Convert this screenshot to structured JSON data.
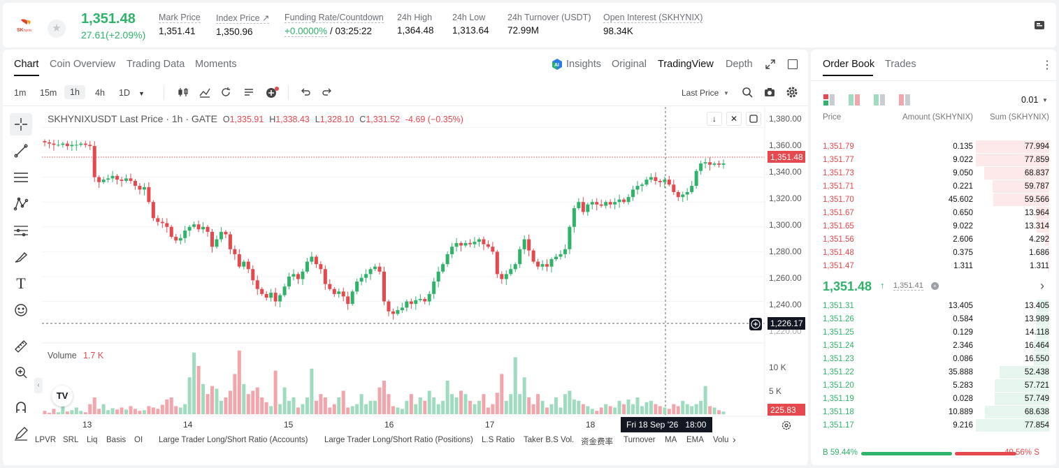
{
  "ticker": {
    "logo_text": "SK hynix",
    "last_price": "1,351.48",
    "change": "27.61(+2.09%)",
    "stats": [
      {
        "label": "Mark Price",
        "value": "1,351.41"
      },
      {
        "label": "Index Price ↗",
        "value": "1,350.96"
      },
      {
        "label": "Funding Rate/Countdown",
        "value_green": "+0.0000%",
        "value": " / 03:25:22"
      },
      {
        "label": "24h High",
        "value": "1,364.48"
      },
      {
        "label": "24h Low",
        "value": "1,313.64"
      },
      {
        "label": "24h Turnover (USDT)",
        "value": "72.99M"
      },
      {
        "label": "Open Interest (SKHYNIX)",
        "value": "98.34K"
      }
    ]
  },
  "chart_tabs": [
    "Chart",
    "Coin Overview",
    "Trading Data",
    "Moments"
  ],
  "view_tabs": {
    "insights": "Insights",
    "original": "Original",
    "tradingview": "TradingView",
    "depth": "Depth"
  },
  "timeframes": [
    "1m",
    "15m",
    "1h",
    "4h",
    "1D"
  ],
  "selected_timeframe": "1h",
  "price_type": "Last Price",
  "legend": {
    "title": "SKHYNIXUSDT Last Price · 1h · GATE",
    "o": "1,335.91",
    "h": "1,338.43",
    "l": "1,328.10",
    "c": "1,331.52",
    "chg": "-4.69 (−0.35%)"
  },
  "volume_label": "Volume",
  "volume_value": "1.7 K",
  "last_price_tag": "1,351.48",
  "crosshair_price_tag": "1,226.17",
  "volume_tag": "225.83",
  "crosshair_time": "Fri 18 Sep '26",
  "crosshair_hour": "18:00",
  "tv_logo": "TV",
  "bottom_tabs": [
    "LPVR",
    "SRL",
    "Liq",
    "Basis",
    "OI",
    "Large Trader Long/Short Ratio (Accounts)",
    "Large Trader Long/Short Ratio (Positions)",
    "L.S Ratio",
    "Taker B.S Vol.",
    "资金费率",
    "Turnover",
    "MA",
    "EMA",
    "Volu"
  ],
  "chart_data": {
    "type": "candlestick",
    "title": "SKHYNIXUSDT Last Price · 1h · GATE",
    "y_ticks": [
      "1,380.00",
      "1,360.00",
      "1,340.00",
      "1,320.00",
      "1,300.00",
      "1,280.00",
      "1,260.00",
      "1,240.00",
      "1,220.00"
    ],
    "y_range": [
      1215,
      1387
    ],
    "x_ticks": [
      "13",
      "14",
      "15",
      "16",
      "17",
      "18"
    ],
    "volume_ticks": [
      "10 K",
      "5 K"
    ],
    "volume_range": [
      0,
      15000
    ],
    "close_path": [
      1368,
      1367,
      1366,
      1366,
      1367,
      1365,
      1366,
      1366,
      1367,
      1366,
      1365,
      1340,
      1336,
      1338,
      1339,
      1341,
      1338,
      1337,
      1339,
      1337,
      1333,
      1330,
      1332,
      1320,
      1307,
      1304,
      1303,
      1300,
      1292,
      1289,
      1291,
      1297,
      1300,
      1302,
      1298,
      1300,
      1296,
      1284,
      1290,
      1296,
      1294,
      1282,
      1278,
      1268,
      1272,
      1266,
      1257,
      1250,
      1246,
      1243,
      1247,
      1240,
      1245,
      1252,
      1260,
      1262,
      1258,
      1264,
      1272,
      1276,
      1270,
      1266,
      1254,
      1250,
      1246,
      1248,
      1244,
      1238,
      1248,
      1256,
      1259,
      1262,
      1266,
      1268,
      1264,
      1240,
      1232,
      1230,
      1233,
      1235,
      1240,
      1238,
      1241,
      1242,
      1240,
      1246,
      1256,
      1264,
      1270,
      1278,
      1284,
      1287,
      1285,
      1287,
      1286,
      1288,
      1290,
      1286,
      1284,
      1280,
      1262,
      1258,
      1262,
      1266,
      1270,
      1282,
      1290,
      1281,
      1272,
      1268,
      1270,
      1268,
      1274,
      1276,
      1278,
      1282,
      1300,
      1315,
      1320,
      1312,
      1318,
      1320,
      1318,
      1317,
      1320,
      1318,
      1320,
      1322,
      1320,
      1324,
      1330,
      1333,
      1334,
      1338,
      1340,
      1337,
      1336,
      1338,
      1334,
      1328,
      1324,
      1326,
      1328,
      1333,
      1345,
      1351,
      1352,
      1350,
      1351,
      1350,
      1351
    ],
    "volume_levels": [
      0.05,
      0.02,
      0.08,
      0.03,
      0.12,
      0.04,
      0.06,
      0.1,
      0.05,
      0.03,
      0.15,
      0.25,
      0.08,
      0.15,
      0.06,
      0.09,
      0.07,
      0.1,
      0.07,
      0.12,
      0.08,
      0.05,
      0.06,
      0.12,
      0.1,
      0.08,
      0.14,
      0.22,
      0.25,
      0.12,
      0.1,
      0.15,
      0.55,
      0.92,
      0.72,
      0.45,
      0.3,
      0.42,
      0.38,
      0.2,
      0.25,
      0.35,
      0.6,
      0.95,
      0.45,
      0.3,
      0.35,
      0.4,
      0.25,
      0.18,
      0.12,
      0.65,
      0.15,
      0.4,
      0.2,
      0.25,
      0.1,
      0.15,
      0.25,
      0.68,
      0.2,
      0.3,
      0.25,
      0.1,
      0.15,
      0.25,
      0.35,
      0.1,
      0.12,
      0.15,
      0.3,
      0.15,
      0.2,
      0.2,
      0.4,
      0.5,
      0.3,
      0.12,
      0.1,
      0.08,
      0.2,
      0.3,
      0.15,
      0.25,
      0.2,
      0.35,
      0.25,
      0.15,
      0.2,
      0.5,
      0.3,
      0.25,
      0.35,
      0.3,
      0.2,
      0.15,
      0.2,
      0.3,
      0.1,
      0.15,
      0.32,
      0.6,
      0.2,
      0.3,
      0.85,
      0.3,
      0.55,
      0.25,
      0.15,
      0.3,
      0.2,
      0.1,
      0.15,
      0.25,
      0.1,
      0.3,
      0.35,
      0.22,
      0.2,
      0.15,
      0.12,
      0.08,
      0.05,
      0.1,
      0.15,
      0.12,
      0.1,
      0.2,
      0.15,
      0.22,
      0.15,
      0.25,
      0.12,
      0.18,
      0.2,
      0.15,
      0.12,
      0.1,
      0.08,
      0.15,
      0.12,
      0.2,
      0.15,
      0.12,
      0.15,
      0.2,
      0.42,
      0.12,
      0.1,
      0.06,
      0.04
    ]
  },
  "orderbook": {
    "tabs": [
      "Order Book",
      "Trades"
    ],
    "precision": "0.01",
    "headers": [
      "Price",
      "Amount (SKHYNIX)",
      "Sum (SKHYNIX)"
    ],
    "asks": [
      {
        "price": "1,351.79",
        "amount": "0.135",
        "sum": "77.994",
        "depth": 1.0
      },
      {
        "price": "1,351.77",
        "amount": "9.022",
        "sum": "77.859",
        "depth": 0.998
      },
      {
        "price": "1,351.73",
        "amount": "9.050",
        "sum": "68.837",
        "depth": 0.882
      },
      {
        "price": "1,351.71",
        "amount": "0.221",
        "sum": "59.787",
        "depth": 0.767
      },
      {
        "price": "1,351.70",
        "amount": "45.602",
        "sum": "59.566",
        "depth": 0.764
      },
      {
        "price": "1,351.67",
        "amount": "0.650",
        "sum": "13.964",
        "depth": 0.179
      },
      {
        "price": "1,351.65",
        "amount": "9.022",
        "sum": "13.314",
        "depth": 0.171
      },
      {
        "price": "1,351.56",
        "amount": "2.606",
        "sum": "4.292",
        "depth": 0.055
      },
      {
        "price": "1,351.48",
        "amount": "0.375",
        "sum": "1.686",
        "depth": 0.022
      },
      {
        "price": "1,351.47",
        "amount": "1.311",
        "sum": "1.311",
        "depth": 0.017
      }
    ],
    "mid_price": "1,351.48",
    "mid_mark": "1,351.41",
    "bids": [
      {
        "price": "1,351.31",
        "amount": "13.405",
        "sum": "13.405",
        "depth": 0.172
      },
      {
        "price": "1,351.26",
        "amount": "0.584",
        "sum": "13.989",
        "depth": 0.18
      },
      {
        "price": "1,351.25",
        "amount": "0.129",
        "sum": "14.118",
        "depth": 0.181
      },
      {
        "price": "1,351.24",
        "amount": "2.346",
        "sum": "16.464",
        "depth": 0.211
      },
      {
        "price": "1,351.23",
        "amount": "0.086",
        "sum": "16.550",
        "depth": 0.212
      },
      {
        "price": "1,351.22",
        "amount": "35.888",
        "sum": "52.438",
        "depth": 0.673
      },
      {
        "price": "1,351.20",
        "amount": "5.283",
        "sum": "57.721",
        "depth": 0.741
      },
      {
        "price": "1,351.19",
        "amount": "0.028",
        "sum": "57.749",
        "depth": 0.741
      },
      {
        "price": "1,351.18",
        "amount": "10.889",
        "sum": "68.638",
        "depth": 0.881
      },
      {
        "price": "1,351.17",
        "amount": "9.216",
        "sum": "77.854",
        "depth": 1.0
      }
    ],
    "buy_ratio": "B 59.44%",
    "sell_ratio": "40.56% S",
    "buy_fraction": 0.5944
  },
  "colors": {
    "up": "#2fb369",
    "down": "#e5484d",
    "up_vol": "#9fdcbf",
    "down_vol": "#f2a5ab"
  },
  "icons": [
    "star-icon",
    "document-icon",
    "ai-insights-icon",
    "expand-icon",
    "window-icon",
    "more-icon",
    "candles-icon",
    "indicator-icon",
    "replay-icon",
    "template-icon",
    "alert-icon",
    "undo-icon",
    "redo-icon",
    "search-icon",
    "camera-icon",
    "gear-icon",
    "crosshair-icon",
    "trendline-icon",
    "fib-icon",
    "pattern-icon",
    "measure-icon",
    "brush-icon",
    "text-icon",
    "emoji-icon",
    "ruler-icon",
    "zoom-icon",
    "magnet-icon",
    "pencil-icon"
  ]
}
